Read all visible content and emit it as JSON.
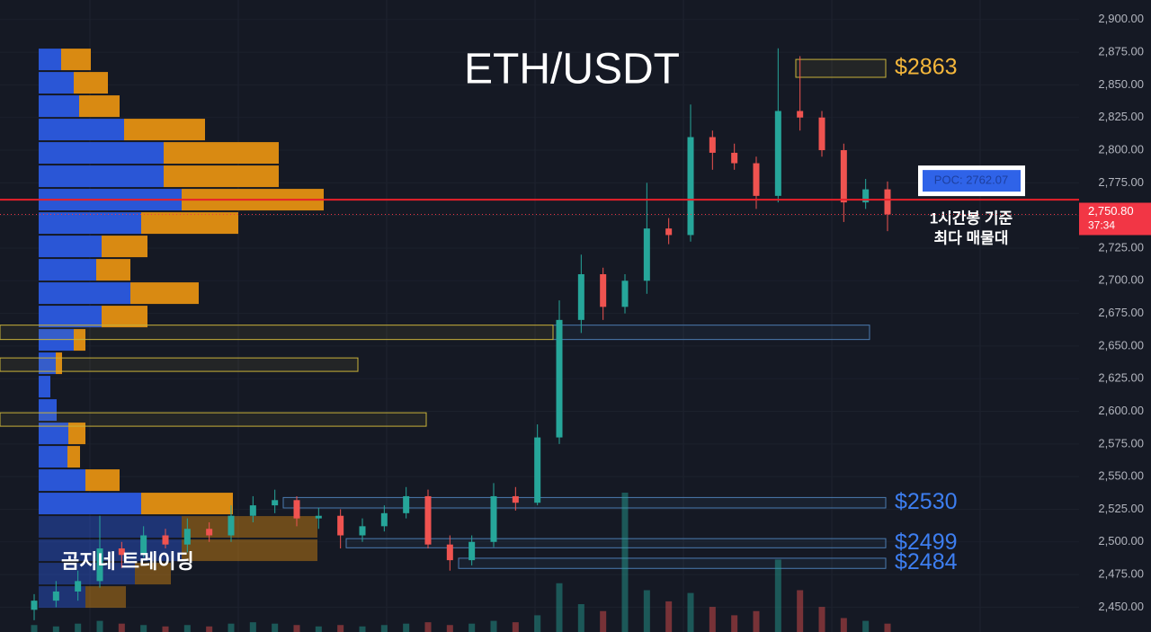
{
  "chart_data": {
    "type": "candlestick",
    "title": "ETH/USDT",
    "watermark": "곰지네 트레이딩",
    "ylim": [
      2431,
      2915
    ],
    "yticks": [
      {
        "value": 2450,
        "label": "2,450.00"
      },
      {
        "value": 2475,
        "label": "2,475.00"
      },
      {
        "value": 2500,
        "label": "2,500.00"
      },
      {
        "value": 2525,
        "label": "2,525.00"
      },
      {
        "value": 2550,
        "label": "2,550.00"
      },
      {
        "value": 2575,
        "label": "2,575.00"
      },
      {
        "value": 2600,
        "label": "2,600.00"
      },
      {
        "value": 2625,
        "label": "2,625.00"
      },
      {
        "value": 2650,
        "label": "2,650.00"
      },
      {
        "value": 2675,
        "label": "2,675.00"
      },
      {
        "value": 2700,
        "label": "2,700.00"
      },
      {
        "value": 2725,
        "label": "2,725.00"
      },
      {
        "value": 2750,
        "label": "2,750.00"
      },
      {
        "value": 2775,
        "label": "2,775.00"
      },
      {
        "value": 2800,
        "label": "2,800.00"
      },
      {
        "value": 2825,
        "label": "2,825.00"
      },
      {
        "value": 2850,
        "label": "2,850.00"
      },
      {
        "value": 2875,
        "label": "2,875.00"
      },
      {
        "value": 2900,
        "label": "2,900.00"
      }
    ],
    "up_color": "#26a69a",
    "down_color": "#ef5350",
    "open": [
      2448,
      2455,
      2462,
      2470,
      2495,
      2490,
      2505,
      2498,
      2510,
      2505,
      2520,
      2528,
      2532,
      2518,
      2520,
      2505,
      2512,
      2522,
      2535,
      2498,
      2486,
      2500,
      2535,
      2530,
      2580,
      2670,
      2705,
      2680,
      2700,
      2740,
      2735,
      2810,
      2798,
      2790,
      2765,
      2830,
      2825,
      2800,
      2760,
      2770
    ],
    "high": [
      2460,
      2470,
      2478,
      2520,
      2500,
      2512,
      2510,
      2518,
      2515,
      2528,
      2535,
      2540,
      2535,
      2526,
      2525,
      2518,
      2528,
      2542,
      2540,
      2505,
      2505,
      2545,
      2542,
      2590,
      2685,
      2720,
      2710,
      2705,
      2775,
      2748,
      2835,
      2815,
      2805,
      2795,
      2878,
      2872,
      2830,
      2805,
      2778,
      2776
    ],
    "low": [
      2440,
      2450,
      2455,
      2465,
      2480,
      2488,
      2495,
      2492,
      2500,
      2500,
      2515,
      2522,
      2512,
      2510,
      2495,
      2500,
      2508,
      2518,
      2495,
      2478,
      2482,
      2496,
      2524,
      2528,
      2575,
      2660,
      2670,
      2675,
      2690,
      2728,
      2730,
      2785,
      2785,
      2755,
      2760,
      2815,
      2795,
      2745,
      2755,
      2738
    ],
    "close": [
      2455,
      2462,
      2470,
      2495,
      2490,
      2505,
      2498,
      2510,
      2505,
      2520,
      2528,
      2532,
      2518,
      2520,
      2505,
      2512,
      2522,
      2535,
      2498,
      2486,
      2500,
      2535,
      2530,
      2580,
      2670,
      2705,
      2680,
      2700,
      2740,
      2735,
      2810,
      2798,
      2790,
      2765,
      2830,
      2825,
      2800,
      2760,
      2770,
      2750.8
    ],
    "volume": [
      5,
      4,
      6,
      8,
      6,
      5,
      4,
      5,
      4,
      6,
      7,
      6,
      5,
      4,
      5,
      4,
      5,
      6,
      7,
      5,
      6,
      8,
      7,
      12,
      35,
      20,
      15,
      100,
      30,
      22,
      28,
      18,
      12,
      15,
      52,
      30,
      18,
      10,
      8,
      6
    ],
    "volume_lim": [
      0,
      100
    ],
    "profile": {
      "prices": [
        2869.5,
        2851.6,
        2833.7,
        2815.8,
        2797.9,
        2780,
        2762.1,
        2744.2,
        2726.3,
        2708.4,
        2690.5,
        2672.6,
        2654.7,
        2636.8,
        2618.9,
        2601,
        2583.1,
        2565.2,
        2547.3,
        2529.4,
        2511.5,
        2493.6,
        2475.7,
        2457.8
      ],
      "buy": [
        25,
        39,
        45,
        95,
        139,
        139,
        159,
        114,
        70,
        64,
        102,
        70,
        39,
        19,
        13,
        20,
        33,
        32,
        52,
        114,
        159,
        159,
        107,
        52
      ],
      "sell": [
        33,
        38,
        45,
        90,
        128,
        128,
        158,
        108,
        51,
        38,
        76,
        51,
        13,
        7,
        0,
        0,
        19,
        14,
        38,
        102,
        151,
        151,
        40,
        45
      ],
      "buy_color": "#2a56d6",
      "sell_color": "#d98a12",
      "lim": [
        0,
        400
      ]
    },
    "zones": [
      {
        "top": 2869.5,
        "bottom": 2855.8,
        "color": "#c9b23a",
        "label": "$2863",
        "label_color": "#f5b73b"
      },
      {
        "top": 2666,
        "bottom": 2655,
        "color": "#4b7bb0"
      },
      {
        "top": 2666,
        "bottom": 2655,
        "color": "#c9b23a"
      },
      {
        "top": 2640.9,
        "bottom": 2630.6,
        "color": "#c9b23a"
      },
      {
        "top": 2598.9,
        "bottom": 2588.6,
        "color": "#c9b23a"
      },
      {
        "top": 2534,
        "bottom": 2526,
        "color": "#4b7bb0",
        "label": "$2530",
        "label_color": "#3d7ef0"
      },
      {
        "top": 2502.5,
        "bottom": 2495.5,
        "color": "#4b7bb0",
        "label": "$2499",
        "label_color": "#3d7ef0"
      },
      {
        "top": 2487.5,
        "bottom": 2479.7,
        "color": "#4b7bb0",
        "label": "$2484",
        "label_color": "#3d7ef0"
      }
    ],
    "poc": {
      "value": 2762.07,
      "label": "POC: 2762.07",
      "color": "#e8202a",
      "note": [
        "1시간봉 기준",
        "최다 매물대"
      ]
    },
    "last_price": {
      "value": 2750.8,
      "label": "2,750.80",
      "countdown": "37:34",
      "color": "#f23645"
    }
  }
}
